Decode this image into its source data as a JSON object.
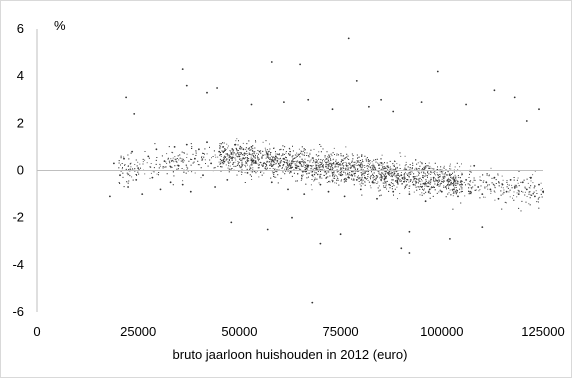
{
  "chart_data": {
    "type": "scatter",
    "title": "",
    "xlabel": "bruto jaarloon huishouden in 2012 (euro)",
    "ylabel": "%",
    "xlim": [
      0,
      125000
    ],
    "ylim": [
      -6,
      6
    ],
    "x_ticks": [
      "0",
      "25000",
      "50000",
      "75000",
      "100000",
      "125000"
    ],
    "y_ticks": [
      "6",
      "4",
      "2",
      "0",
      "-2",
      "-4",
      "-6"
    ],
    "grid": false,
    "legend": "none",
    "colors": {
      "points": "#333333",
      "zero_line": "#bfbfbf",
      "axis": "#bfbfbf"
    },
    "series": [
      {
        "x": [
          18000,
          19000,
          20500,
          21500,
          22500,
          23500,
          24500,
          25000,
          26000,
          27500,
          28500,
          29500,
          30500,
          31500,
          33000,
          34000,
          35000,
          36000,
          37000,
          38000,
          39000,
          40000,
          41000,
          42000,
          43000,
          44000,
          45000,
          46000,
          47000,
          48000,
          49000,
          50000,
          51000,
          52000,
          53000,
          54000,
          55000,
          56000,
          57000,
          58000,
          59000,
          60000,
          61000,
          62000,
          63000,
          64000,
          65000,
          66000,
          67000,
          68000,
          69000,
          70000,
          71000,
          72000,
          73000,
          74000,
          75000,
          76000,
          77000,
          78000,
          79000,
          80000,
          81000,
          82000,
          83000,
          84000,
          85000,
          86000,
          87000,
          88000,
          89000,
          90000,
          91000,
          92000,
          93000,
          94000,
          95000,
          96000,
          97000,
          98000,
          99000,
          100000,
          101000,
          102000,
          103000,
          104000,
          105000,
          106000,
          107000,
          108000,
          109000,
          110000,
          111000,
          112000,
          113000,
          114000,
          115000,
          116000,
          117000,
          118000,
          119000,
          120000,
          121000,
          122000,
          123000,
          124000,
          125000,
          22000,
          24000,
          36000,
          37000,
          42000,
          44500,
          53000,
          58000,
          61000,
          65000,
          67000,
          73000,
          77000,
          79000,
          82000,
          85000,
          88000,
          92000,
          95000,
          99000,
          102000,
          106000,
          110000,
          113000,
          118000,
          121000,
          124000,
          48000,
          57000,
          63000,
          70000,
          90000,
          68000,
          75000,
          92000
        ],
        "y": [
          -1.1,
          0.3,
          -0.2,
          0.5,
          -0.7,
          0.8,
          -0.4,
          0.1,
          -1.0,
          0.6,
          -0.3,
          0.9,
          -0.8,
          0.4,
          -0.5,
          1.0,
          0.2,
          -0.6,
          1.1,
          -0.9,
          0.5,
          0.9,
          -0.2,
          1.2,
          0.3,
          -0.7,
          0.8,
          1.0,
          -0.4,
          0.7,
          1.1,
          0.6,
          0.9,
          -0.1,
          1.0,
          0.4,
          0.8,
          0.3,
          0.7,
          -0.5,
          0.6,
          0.2,
          0.5,
          -0.8,
          0.4,
          0.1,
          0.3,
          -1.0,
          0.2,
          -0.2,
          0.1,
          -0.6,
          0.0,
          -0.9,
          -0.1,
          0.3,
          -0.2,
          -1.1,
          -0.3,
          0.2,
          -0.4,
          -0.8,
          -0.3,
          0.4,
          -0.5,
          -1.2,
          -0.4,
          0.1,
          -0.6,
          -0.9,
          -0.5,
          -0.2,
          -0.7,
          -1.0,
          -0.6,
          0.0,
          -0.7,
          -1.3,
          -0.8,
          -0.3,
          -0.6,
          -0.9,
          -0.7,
          -0.2,
          -0.8,
          -1.1,
          -0.6,
          -0.4,
          -0.9,
          0.2,
          -0.7,
          -1.0,
          -0.5,
          -0.8,
          -0.3,
          -1.2,
          -0.6,
          -0.9,
          -0.4,
          -0.7,
          -1.0,
          -0.5,
          -0.8,
          -0.3,
          -1.1,
          -0.6,
          -0.9,
          3.1,
          2.4,
          4.3,
          3.6,
          3.3,
          3.5,
          2.8,
          4.6,
          2.9,
          4.5,
          3.0,
          2.6,
          5.6,
          3.8,
          2.7,
          3.0,
          2.5,
          -2.6,
          2.9,
          4.2,
          -2.9,
          2.8,
          -2.4,
          3.4,
          3.1,
          2.1,
          2.6,
          -2.2,
          -2.5,
          -2.0,
          -3.1,
          -3.3,
          -5.6,
          -2.7,
          -3.5
        ]
      }
    ]
  }
}
